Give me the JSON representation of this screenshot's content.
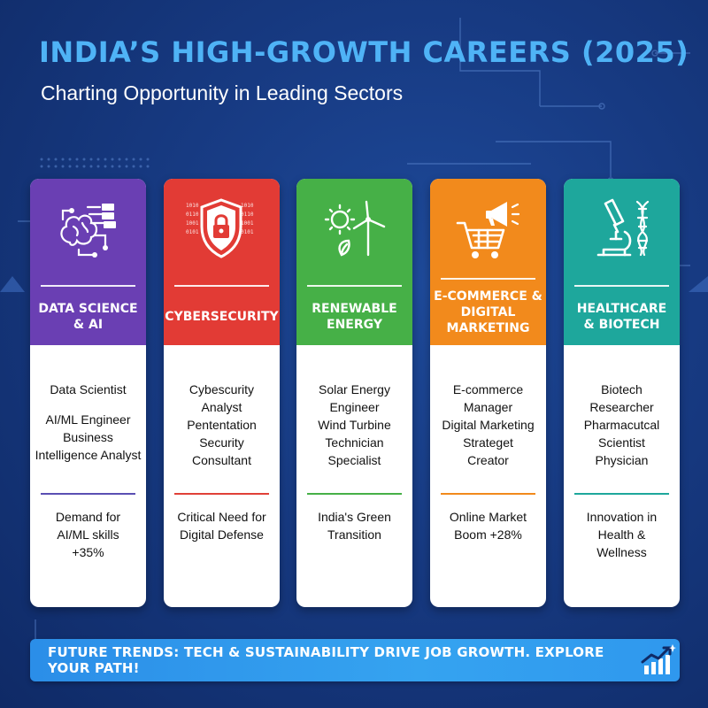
{
  "header": {
    "title": "INDIA’S HIGH-GROWTH CAREERS (2025)",
    "subtitle": "Charting Opportunity in Leading Sectors"
  },
  "cards": [
    {
      "icon": "brain-circuit-icon",
      "color": "#6a3fb3",
      "accent": "#5a4fb3",
      "heading": [
        "DATA SCIENCE",
        "& AI"
      ],
      "roles": [
        "Data Scientist",
        "AI/ML Engineer",
        "Business",
        "Intelligence Analyst"
      ],
      "stat": [
        "Demand for",
        "AI/ML skills",
        "+35%"
      ]
    },
    {
      "icon": "shield-lock-icon",
      "color": "#e23b35",
      "accent": "#e04038",
      "heading": [
        "CYBERSECURITY"
      ],
      "roles": [
        "Cybescurity",
        "Analyst",
        "Pententation",
        "Security",
        "Consultant"
      ],
      "stat": [
        "Critical Need for",
        "Digital Defense"
      ]
    },
    {
      "icon": "sun-wind-turbine-icon",
      "color": "#46b047",
      "accent": "#46b047",
      "heading": [
        "RENEWABLE",
        "ENERGY"
      ],
      "roles": [
        "Solar Energy",
        "Engineer",
        "Wind Turbine",
        "Technician",
        "Specialist"
      ],
      "stat": [
        "India's Green",
        "Transition"
      ]
    },
    {
      "icon": "shopping-cart-megaphone-icon",
      "color": "#f28a1c",
      "accent": "#f28a1c",
      "heading": [
        "E-COMMERCE &",
        "DIGITAL",
        "MARKETING"
      ],
      "roles": [
        "E-commerce",
        "Manager",
        "Digital Marketing",
        "Strateget",
        "Creator"
      ],
      "stat": [
        "Online Market",
        "Boom +28%"
      ]
    },
    {
      "icon": "microscope-dna-icon",
      "color": "#1ea79c",
      "accent": "#1ea79c",
      "heading": [
        "HEALTHCARE",
        "& BIOTECH"
      ],
      "roles": [
        "Biotech",
        "Researcher",
        "Pharmacutcal",
        "Scientist",
        "Physician"
      ],
      "stat": [
        "Innovation in",
        "Health &",
        "Wellness"
      ]
    }
  ],
  "banner": {
    "text": "FUTURE TRENDS: TECH & SUSTAINABILITY DRIVE JOB GROWTH. EXPLORE YOUR PATH!",
    "icon": "trend-chart-icon"
  }
}
